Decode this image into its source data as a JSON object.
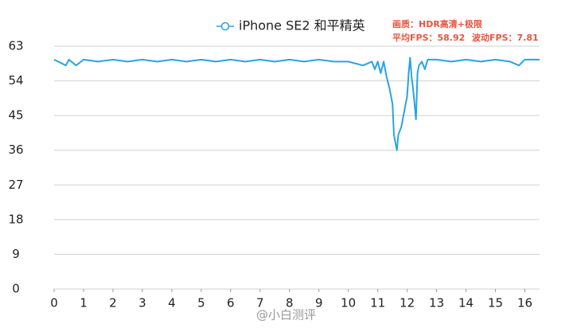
{
  "chart_data": {
    "type": "line",
    "legend_position": "top",
    "annotations": [
      "画质：HDR高清+极限",
      "平均FPS：58.92",
      "波动FPS：7.81"
    ],
    "watermark": "@小白测评",
    "x": [
      0,
      0.4,
      0.5,
      0.75,
      1,
      1.5,
      2,
      2.5,
      3,
      3.5,
      4,
      4.5,
      5,
      5.5,
      6,
      6.5,
      7,
      7.5,
      8,
      8.5,
      9,
      9.5,
      10,
      10.5,
      10.8,
      10.9,
      11,
      11.1,
      11.2,
      11.3,
      11.4,
      11.5,
      11.55,
      11.6,
      11.65,
      11.7,
      11.8,
      11.9,
      12,
      12.05,
      12.1,
      12.15,
      12.2,
      12.25,
      12.3,
      12.35,
      12.4,
      12.5,
      12.6,
      12.7,
      13,
      13.5,
      14,
      14.5,
      15,
      15.5,
      15.8,
      16,
      16.5
    ],
    "series": [
      {
        "name": "iPhone SE2 和平精英",
        "color": "#29a3e4",
        "values": [
          59.5,
          58,
          59.5,
          58,
          59.5,
          59,
          59.5,
          59,
          59.5,
          59,
          59.5,
          59,
          59.5,
          59,
          59.5,
          59,
          59.5,
          59,
          59.5,
          59,
          59.5,
          59,
          59,
          58,
          59,
          57,
          59,
          56,
          59,
          55,
          52,
          48,
          40,
          38,
          36,
          40,
          42,
          46,
          50,
          56,
          60,
          55,
          52,
          48,
          44,
          56,
          58,
          59,
          57,
          59.5,
          59.5,
          59,
          59.5,
          59,
          59.5,
          59,
          58,
          59.5,
          59.5
        ]
      }
    ],
    "xlim": [
      0,
      16.5
    ],
    "xticks": [
      0,
      1,
      2,
      3,
      4,
      5,
      6,
      7,
      8,
      9,
      10,
      11,
      12,
      13,
      14,
      15,
      16
    ],
    "ylim": [
      0,
      63
    ],
    "yticks": [
      0,
      9,
      18,
      27,
      36,
      45,
      54,
      63
    ],
    "grid": true
  }
}
